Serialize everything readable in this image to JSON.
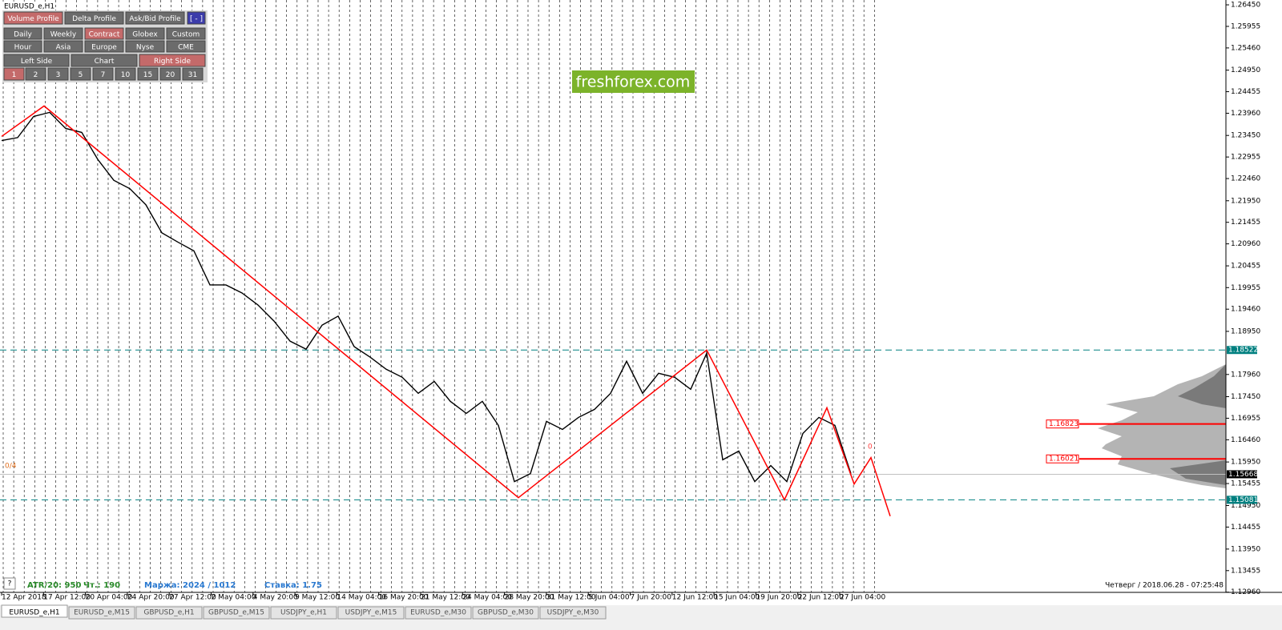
{
  "window": {
    "title": "EURUSD_e,H1"
  },
  "panel": {
    "rows": [
      [
        {
          "label": "Volume Profile",
          "active": true
        },
        {
          "label": "Delta Profile",
          "active": false
        },
        {
          "label": "Ask/Bid Profile",
          "active": false
        },
        {
          "label": "[ - ]",
          "active": false,
          "accent": true
        }
      ],
      [
        {
          "label": "Daily",
          "active": false
        },
        {
          "label": "Weekly",
          "active": false
        },
        {
          "label": "Contract",
          "active": true
        },
        {
          "label": "Globex",
          "active": false
        },
        {
          "label": "Custom",
          "active": false
        }
      ],
      [
        {
          "label": "Hour",
          "active": false
        },
        {
          "label": "Asia",
          "active": false
        },
        {
          "label": "Europe",
          "active": false
        },
        {
          "label": "Nyse",
          "active": false
        },
        {
          "label": "CME",
          "active": false
        }
      ],
      [
        {
          "label": "Left Side",
          "active": false
        },
        {
          "label": "Chart",
          "active": false
        },
        {
          "label": "Right Side",
          "active": true
        }
      ],
      [
        {
          "label": "1",
          "active": true
        },
        {
          "label": "2",
          "active": false
        },
        {
          "label": "3",
          "active": false
        },
        {
          "label": "5",
          "active": false
        },
        {
          "label": "7",
          "active": false
        },
        {
          "label": "10",
          "active": false
        },
        {
          "label": "15",
          "active": false
        },
        {
          "label": "20",
          "active": false
        },
        {
          "label": "31",
          "active": false
        }
      ]
    ]
  },
  "logo": "freshforex.com",
  "chart": {
    "ylim": [
      1.12955,
      1.26561
    ],
    "yticks": [
      {
        "value": 1.2645,
        "label": "1.26450"
      },
      {
        "value": 1.25955,
        "label": "1.25955"
      },
      {
        "value": 1.2546,
        "label": "1.25460"
      },
      {
        "value": 1.2495,
        "label": "1.24950"
      },
      {
        "value": 1.24455,
        "label": "1.24455"
      },
      {
        "value": 1.2396,
        "label": "1.23960"
      },
      {
        "value": 1.2345,
        "label": "1.23450"
      },
      {
        "value": 1.22955,
        "label": "1.22955"
      },
      {
        "value": 1.2246,
        "label": "1.22460"
      },
      {
        "value": 1.2195,
        "label": "1.21950"
      },
      {
        "value": 1.21455,
        "label": "1.21455"
      },
      {
        "value": 1.2096,
        "label": "1.20960"
      },
      {
        "value": 1.20455,
        "label": "1.20455"
      },
      {
        "value": 1.19955,
        "label": "1.19955"
      },
      {
        "value": 1.1946,
        "label": "1.19460"
      },
      {
        "value": 1.1895,
        "label": "1.18950"
      },
      {
        "value": 1.1796,
        "label": "1.17960"
      },
      {
        "value": 1.1745,
        "label": "1.17450"
      },
      {
        "value": 1.16955,
        "label": "1.16955"
      },
      {
        "value": 1.1646,
        "label": "1.16460"
      },
      {
        "value": 1.1595,
        "label": "1.15950"
      },
      {
        "value": 1.15455,
        "label": "1.15455"
      },
      {
        "value": 1.1495,
        "label": "1.14950"
      },
      {
        "value": 1.14455,
        "label": "1.14455"
      },
      {
        "value": 1.1395,
        "label": "1.13950"
      },
      {
        "value": 1.13455,
        "label": "1.13455"
      },
      {
        "value": 1.1296,
        "label": "1.12960"
      }
    ],
    "x_labels": [
      "12 Apr 2018",
      "17 Apr 12:00",
      "20 Apr 04:00",
      "24 Apr 20:00",
      "27 Apr 12:00",
      "2 May 04:00",
      "4 May 20:00",
      "9 May 12:00",
      "14 May 04:00",
      "16 May 20:00",
      "21 May 12:00",
      "24 May 04:00",
      "28 May 20:00",
      "31 May 12:00",
      "5 Jun 04:00",
      "7 Jun 20:00",
      "12 Jun 12:00",
      "15 Jun 04:00",
      "19 Jun 20:00",
      "22 Jun 12:00",
      "27 Jun 04:00"
    ],
    "price": {
      "color": "#000000",
      "values": [
        1.23334,
        1.234,
        1.23887,
        1.2398,
        1.23611,
        1.2352,
        1.229,
        1.2242,
        1.22228,
        1.21859,
        1.21214,
        1.21,
        1.208,
        1.20016,
        1.20016,
        1.19832,
        1.19555,
        1.19186,
        1.18725,
        1.18541,
        1.19094,
        1.193,
        1.186,
        1.18357,
        1.1808,
        1.17896,
        1.17527,
        1.178,
        1.17343,
        1.17066,
        1.17343,
        1.1679,
        1.15499,
        1.15683,
        1.16882,
        1.16697,
        1.16974,
        1.17158,
        1.17527,
        1.18264,
        1.17527,
        1.17988,
        1.17896,
        1.17619,
        1.18449,
        1.16,
        1.162,
        1.15499,
        1.15868,
        1.15499,
        1.16605,
        1.16974,
        1.1679,
        1.15683
      ]
    },
    "zigzag": {
      "color": "#ff0000",
      "x": [
        0,
        2.65,
        32.25,
        44,
        48.85,
        51.5,
        53.2,
        54.25,
        55.45
      ],
      "y": [
        1.23427,
        1.24127,
        1.1513,
        1.18522,
        1.15081,
        1.17195,
        1.15444,
        1.16052,
        1.14706
      ]
    },
    "levels": [
      {
        "value": 1.18522,
        "label": "1.18522",
        "color": "#008080"
      },
      {
        "value": 1.15081,
        "label": "1.15081",
        "color": "#008080"
      }
    ],
    "current": {
      "value": 1.15668,
      "label": "1.15668"
    },
    "marks": [
      {
        "value": 1.16823,
        "label": "1.16823",
        "color": "#ff0000"
      },
      {
        "value": 1.16021,
        "label": "1.16021",
        "color": "#ff0000"
      }
    ],
    "annotations": [
      "0/4",
      "0"
    ]
  },
  "status": {
    "help": "?",
    "atr": "ATR/20: 950",
    "ch": "Чт.: 190",
    "margin": "Маржа: 2024 / 1012",
    "rate": "Ставка: 1.75",
    "datetime": "Четверг / 2018.06.28 - 07:25:48"
  },
  "tabs": [
    {
      "label": "EURUSD_e,H1",
      "active": true
    },
    {
      "label": "EURUSD_e,M15",
      "active": false
    },
    {
      "label": "GBPUSD_e,H1",
      "active": false
    },
    {
      "label": "GBPUSD_e,M15",
      "active": false
    },
    {
      "label": "USDJPY_e,H1",
      "active": false
    },
    {
      "label": "USDJPY_e,M15",
      "active": false
    },
    {
      "label": "EURUSD_e,M30",
      "active": false
    },
    {
      "label": "GBPUSD_e,M30",
      "active": false
    },
    {
      "label": "USDJPY_e,M30",
      "active": false
    }
  ]
}
